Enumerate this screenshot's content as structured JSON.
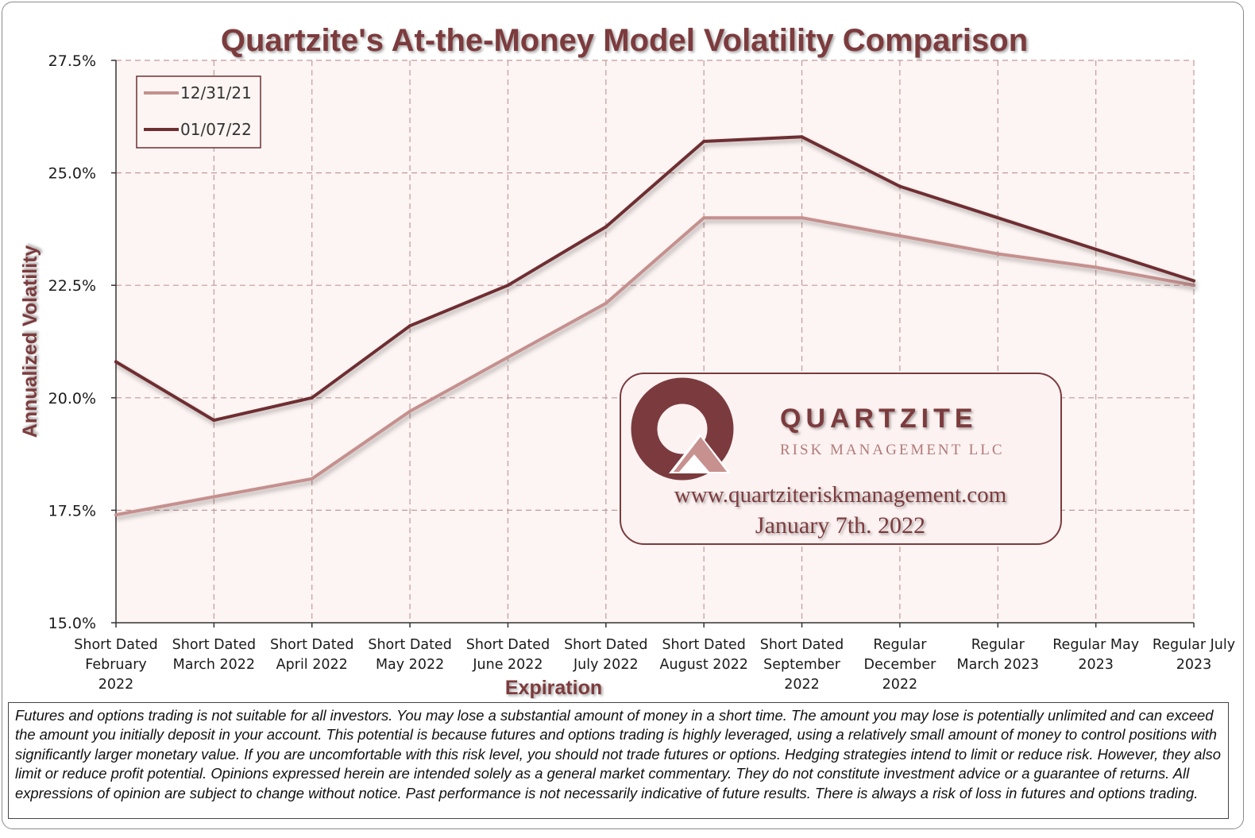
{
  "colors": {
    "title": "#7b3b3e",
    "series_a": "#c4908e",
    "series_b": "#6e2f33",
    "plot_bg": "#fdf5f3",
    "grid": "#c29a9b"
  },
  "chart_data": {
    "type": "line",
    "title": "Quartzite's At-the-Money Model Volatility Comparison",
    "xlabel": "Expiration",
    "ylabel": "Annualized Volatility",
    "ylim": [
      15.0,
      27.5
    ],
    "yticks": [
      "15.0%",
      "17.5%",
      "20.0%",
      "22.5%",
      "25.0%",
      "27.5%"
    ],
    "grid": true,
    "legend_position": "top-left",
    "categories": [
      [
        "Short Dated",
        "February",
        "2022"
      ],
      [
        "Short Dated",
        "March 2022"
      ],
      [
        "Short Dated",
        "April 2022"
      ],
      [
        "Short Dated",
        "May 2022"
      ],
      [
        "Short Dated",
        "June 2022"
      ],
      [
        "Short Dated",
        "July 2022"
      ],
      [
        "Short Dated",
        "August 2022"
      ],
      [
        "Short Dated",
        "September",
        "2022"
      ],
      [
        "Regular",
        "December",
        "2022"
      ],
      [
        "Regular",
        "March 2023"
      ],
      [
        "Regular May",
        "2023"
      ],
      [
        "Regular July",
        "2023"
      ]
    ],
    "series": [
      {
        "name": "12/31/21",
        "color": "#c4908e",
        "values": [
          17.4,
          17.8,
          18.2,
          19.7,
          20.9,
          22.1,
          24.0,
          24.0,
          23.6,
          23.2,
          22.9,
          22.5
        ]
      },
      {
        "name": "01/07/22",
        "color": "#6e2f33",
        "values": [
          20.8,
          19.5,
          20.0,
          21.6,
          22.5,
          23.8,
          25.7,
          25.8,
          24.7,
          24.0,
          23.3,
          22.6
        ]
      }
    ]
  },
  "logo": {
    "name": "QUARTZITE",
    "subtitle": "RISK MANAGEMENT LLC",
    "url": "www.quartziteriskmanagement.com",
    "date": "January 7th. 2022"
  },
  "disclaimer": "Futures and options trading is not suitable for all investors. You may lose a substantial amount of money in a short time.  The amount you may lose is potentially unlimited and can exceed the amount you initially deposit in your account. This potential is because futures and options trading is highly leveraged, using a relatively small amount of money to control positions with significantly larger monetary value. If you are uncomfortable with this risk level, you should not trade futures or options. Hedging strategies intend to limit or reduce risk. However, they also limit or reduce profit potential. Opinions expressed herein are intended solely as a general market commentary. They do not constitute investment advice or a guarantee of returns. All expressions of opinion are subject to change without notice. Past performance is not necessarily indicative of future results. There is always a risk of loss in futures and options trading."
}
